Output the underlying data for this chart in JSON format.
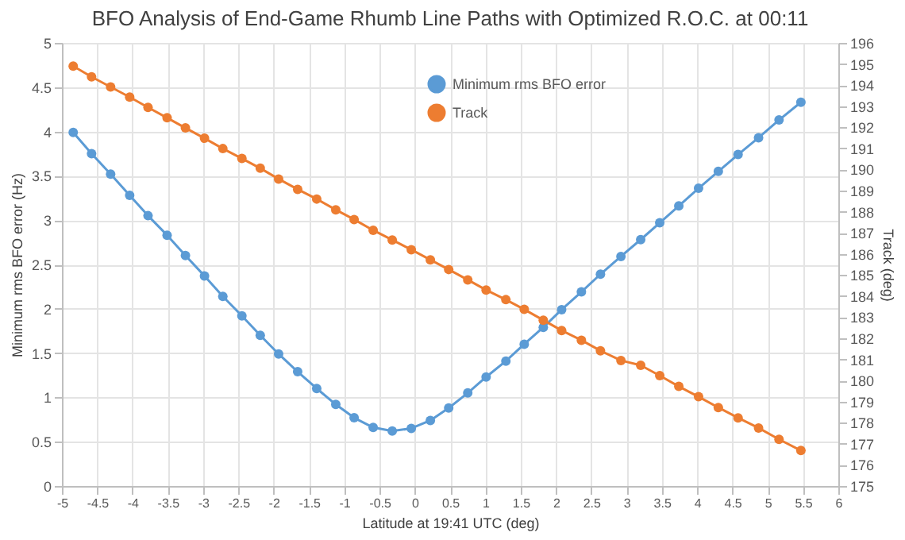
{
  "chart_data": {
    "type": "line",
    "title": "BFO Analysis of End-Game Rhumb Line Paths with Optimized R.O.C. at 00:11",
    "xlabel": "Latitude at 19:41 UTC (deg)",
    "ylabel": "Minimum rms BFO error (Hz)",
    "y2label": "Track (deg)",
    "x": [
      -4.84,
      -4.58,
      -4.31,
      -4.04,
      -3.78,
      -3.51,
      -3.25,
      -2.98,
      -2.72,
      -2.45,
      -2.19,
      -1.93,
      -1.66,
      -1.39,
      -1.12,
      -0.86,
      -0.59,
      -0.32,
      -0.05,
      0.22,
      0.48,
      0.75,
      1.01,
      1.29,
      1.55,
      1.82,
      2.08,
      2.36,
      2.63,
      2.92,
      3.2,
      3.47,
      3.74,
      4.02,
      4.3,
      4.58,
      4.87,
      5.16,
      5.47
    ],
    "series": [
      {
        "name": "Minimum rms BFO error",
        "color": "#5b9bd5",
        "values": [
          3.99,
          3.75,
          3.52,
          3.28,
          3.05,
          2.83,
          2.6,
          2.37,
          2.14,
          1.92,
          1.7,
          1.49,
          1.29,
          1.1,
          0.92,
          0.77,
          0.66,
          0.62,
          0.65,
          0.74,
          0.88,
          1.05,
          1.23,
          1.41,
          1.6,
          1.79,
          1.99,
          2.19,
          2.39,
          2.59,
          2.78,
          2.97,
          3.16,
          3.36,
          3.55,
          3.74,
          3.93,
          4.13,
          4.33
        ]
      },
      {
        "name": "Track",
        "color": "#ed7d31",
        "axis": "y2",
        "values": [
          194.9,
          194.39,
          193.91,
          193.43,
          192.94,
          192.45,
          191.97,
          191.48,
          190.99,
          190.52,
          190.06,
          189.55,
          189.06,
          188.6,
          188.09,
          187.63,
          187.12,
          186.66,
          186.2,
          185.72,
          185.26,
          184.77,
          184.29,
          183.83,
          183.37,
          182.86,
          182.37,
          181.91,
          181.41,
          180.95,
          180.72,
          180.23,
          179.72,
          179.23,
          178.72,
          178.23,
          177.75,
          177.21,
          176.68
        ]
      }
    ],
    "xlim": [
      -5,
      6
    ],
    "xticks": [
      -5,
      -4.5,
      -4,
      -3.5,
      -3,
      -2.5,
      -2,
      -1.5,
      -1,
      -0.5,
      0,
      0.5,
      1,
      1.5,
      2,
      2.5,
      3,
      3.5,
      4,
      4.5,
      5,
      5.5,
      6
    ],
    "ylim": [
      0,
      5
    ],
    "yticks": [
      0,
      0.5,
      1,
      1.5,
      2,
      2.5,
      3,
      3.5,
      4,
      4.5,
      5
    ],
    "y2lim": [
      175,
      196
    ],
    "y2ticks": [
      175,
      176,
      177,
      178,
      179,
      180,
      181,
      182,
      183,
      184,
      185,
      186,
      187,
      188,
      189,
      190,
      191,
      192,
      193,
      194,
      195,
      196
    ],
    "grid": true,
    "legend": "top",
    "marker": "circle",
    "line_style": "solid"
  }
}
